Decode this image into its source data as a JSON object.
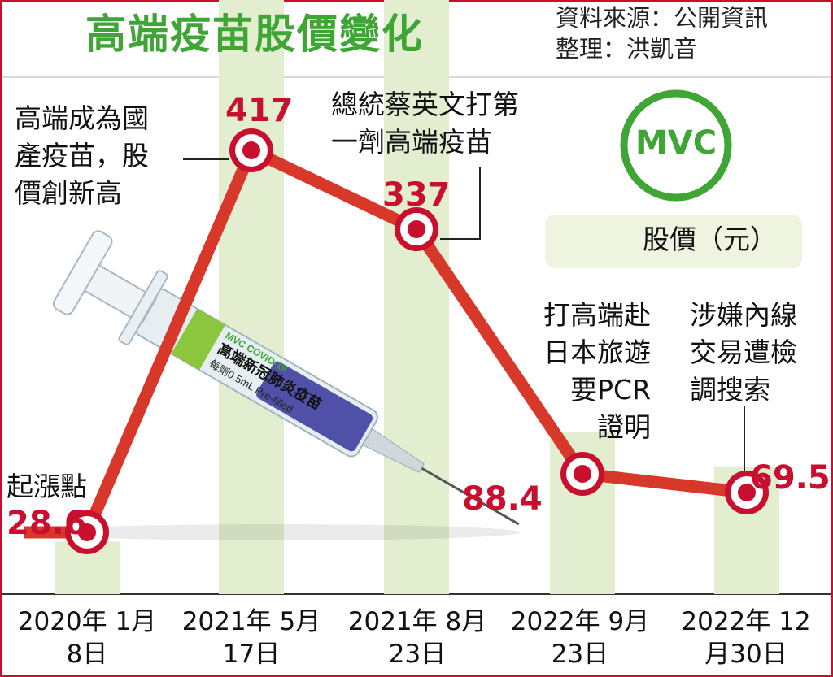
{
  "header": {
    "title": "高端疫苗股價變化",
    "source_line": "資料來源：公開資訊",
    "editor_line": "整理：洪凱音"
  },
  "logo": {
    "text": "MVC",
    "color": "#3fa535"
  },
  "legend": {
    "label": "股價（元）"
  },
  "syringe": {
    "label_line1": "MVC COVID-19",
    "label_line2": "高端新冠肺炎疫苗",
    "label_line3": "每劑0.5mL Pre-filled"
  },
  "colors": {
    "line": "#d8382a",
    "marker_outer": "#c8102e",
    "bar": "#e3eed0",
    "value_text": "#c8102e",
    "border": "#c8102e"
  },
  "chart_data": {
    "type": "line",
    "categories": [
      "2020年\n1月8日",
      "2021年\n5月17日",
      "2021年\n8月23日",
      "2022年\n9月23日",
      "2022年\n12月30日"
    ],
    "values": [
      28.6,
      417,
      337,
      88.4,
      69.5
    ],
    "value_labels": [
      "28.6",
      "417",
      "337",
      "88.4",
      "69.5"
    ],
    "annotations": [
      "起漲點",
      "高端成為國\n產疫苗，股\n價創新高",
      "總統蔡英文打第\n一劑高端疫苗",
      "打高端赴\n日本旅遊\n要PCR\n證明",
      "涉嫌內線\n交易遭檢\n調搜索"
    ],
    "title": "高端疫苗股價變化",
    "ylabel": "",
    "legend": "股價（元）",
    "legend_position": "right",
    "grid": false
  }
}
